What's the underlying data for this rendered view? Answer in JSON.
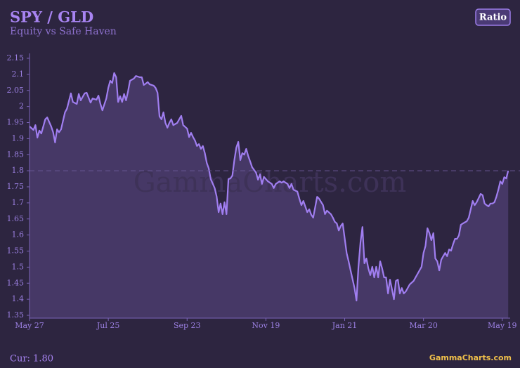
{
  "chart_data": {
    "type": "area",
    "title": "SPY / GLD",
    "subtitle": "Equity vs Safe Haven",
    "button": "Ratio",
    "watermark": "GammaCharts.com",
    "current": "Cur: 1.80",
    "brand": "GammaCharts.com",
    "color": "#a07ef0",
    "fill": "#463866",
    "reference_line": 1.8,
    "x": [
      0,
      2,
      3,
      4,
      5,
      6,
      8,
      9,
      11,
      12,
      13,
      14,
      15,
      16,
      18,
      19,
      21,
      22,
      24,
      25,
      26,
      28,
      29,
      31,
      32,
      34,
      35,
      36,
      37,
      39,
      40,
      41,
      42,
      43,
      44,
      45,
      46,
      47,
      48,
      49,
      50,
      51,
      53,
      54,
      56,
      57,
      58,
      59,
      60,
      61,
      63,
      64,
      65,
      66,
      67,
      68,
      69,
      70,
      71,
      72,
      73,
      75,
      76,
      77,
      78,
      80,
      81,
      82,
      83,
      84,
      85,
      86,
      87,
      88,
      89,
      90,
      91,
      92,
      94,
      95,
      96,
      97,
      98,
      99,
      100,
      101,
      102,
      103,
      104,
      105,
      106,
      107,
      108,
      109,
      110,
      111,
      112,
      113,
      115,
      116,
      117,
      118,
      119,
      120,
      121,
      123,
      124,
      125,
      127,
      128,
      129,
      131,
      132,
      133,
      134,
      136,
      137,
      138,
      139,
      141,
      142,
      143,
      144,
      146,
      147,
      149,
      150,
      151,
      153,
      154,
      155,
      156,
      157,
      158,
      159,
      161,
      162,
      163,
      165,
      166,
      167,
      168,
      169,
      170,
      171,
      172,
      173,
      174,
      175,
      176,
      177,
      178,
      179,
      180,
      181,
      182,
      183,
      184,
      185,
      186,
      187,
      188,
      189,
      190,
      191,
      192,
      193,
      195,
      196,
      198,
      199,
      200,
      201,
      202,
      203,
      204,
      205,
      206,
      207,
      208,
      209,
      210,
      211,
      212,
      213,
      214,
      215,
      216,
      217,
      218,
      219,
      220,
      222,
      223,
      224,
      225,
      226,
      227,
      229,
      230,
      231,
      232,
      233,
      234,
      235,
      236,
      237,
      238,
      239,
      240,
      241,
      242,
      243
    ],
    "values": [
      1.938,
      1.927,
      1.942,
      1.903,
      1.925,
      1.916,
      1.96,
      1.966,
      1.938,
      1.92,
      1.888,
      1.929,
      1.92,
      1.929,
      1.982,
      1.993,
      2.041,
      2.014,
      2.008,
      2.039,
      2.019,
      2.041,
      2.043,
      2.012,
      2.025,
      2.021,
      2.034,
      2.008,
      1.988,
      2.025,
      2.058,
      2.08,
      2.073,
      2.104,
      2.091,
      2.014,
      2.032,
      2.014,
      2.039,
      2.019,
      2.047,
      2.08,
      2.087,
      2.095,
      2.091,
      2.091,
      2.067,
      2.071,
      2.076,
      2.069,
      2.065,
      2.058,
      2.043,
      1.969,
      1.96,
      1.982,
      1.949,
      1.934,
      1.949,
      1.96,
      1.942,
      1.949,
      1.96,
      1.971,
      1.942,
      1.931,
      1.905,
      1.918,
      1.905,
      1.894,
      1.877,
      1.883,
      1.868,
      1.877,
      1.855,
      1.824,
      1.807,
      1.774,
      1.746,
      1.72,
      1.671,
      1.698,
      1.665,
      1.702,
      1.665,
      1.774,
      1.776,
      1.785,
      1.833,
      1.872,
      1.89,
      1.833,
      1.855,
      1.85,
      1.868,
      1.846,
      1.829,
      1.811,
      1.794,
      1.772,
      1.789,
      1.759,
      1.781,
      1.774,
      1.767,
      1.759,
      1.746,
      1.759,
      1.767,
      1.763,
      1.767,
      1.759,
      1.746,
      1.759,
      1.741,
      1.735,
      1.713,
      1.693,
      1.706,
      1.671,
      1.68,
      1.663,
      1.654,
      1.719,
      1.713,
      1.693,
      1.665,
      1.676,
      1.665,
      1.654,
      1.641,
      1.636,
      1.614,
      1.628,
      1.636,
      1.544,
      1.518,
      1.49,
      1.435,
      1.396,
      1.501,
      1.577,
      1.625,
      1.512,
      1.527,
      1.496,
      1.475,
      1.501,
      1.468,
      1.501,
      1.468,
      1.518,
      1.496,
      1.468,
      1.468,
      1.418,
      1.461,
      1.431,
      1.4,
      1.457,
      1.461,
      1.418,
      1.435,
      1.418,
      1.424,
      1.435,
      1.446,
      1.457,
      1.468,
      1.49,
      1.501,
      1.544,
      1.566,
      1.621,
      1.606,
      1.584,
      1.606,
      1.527,
      1.518,
      1.49,
      1.523,
      1.534,
      1.544,
      1.534,
      1.555,
      1.551,
      1.571,
      1.588,
      1.588,
      1.599,
      1.632,
      1.636,
      1.643,
      1.654,
      1.68,
      1.706,
      1.693,
      1.702,
      1.728,
      1.724,
      1.698,
      1.693,
      1.689,
      1.698,
      1.698,
      1.702,
      1.719,
      1.741,
      1.767,
      1.759,
      1.78,
      1.776,
      1.8
    ],
    "xlim": [
      0,
      244
    ],
    "xticks": [
      {
        "value": 0,
        "label": "May 27"
      },
      {
        "value": 40,
        "label": "Jul 25"
      },
      {
        "value": 80,
        "label": "Sep 23"
      },
      {
        "value": 120,
        "label": "Nov 19"
      },
      {
        "value": 160,
        "label": "Jan 21"
      },
      {
        "value": 200,
        "label": "Mar 20"
      },
      {
        "value": 240,
        "label": "May 19"
      }
    ],
    "ylim": [
      1.35,
      2.15
    ],
    "yticks": [
      1.35,
      1.4,
      1.45,
      1.5,
      1.55,
      1.6,
      1.65,
      1.7,
      1.75,
      1.8,
      1.85,
      1.9,
      1.95,
      2,
      2.05,
      2.1,
      2.15
    ]
  }
}
